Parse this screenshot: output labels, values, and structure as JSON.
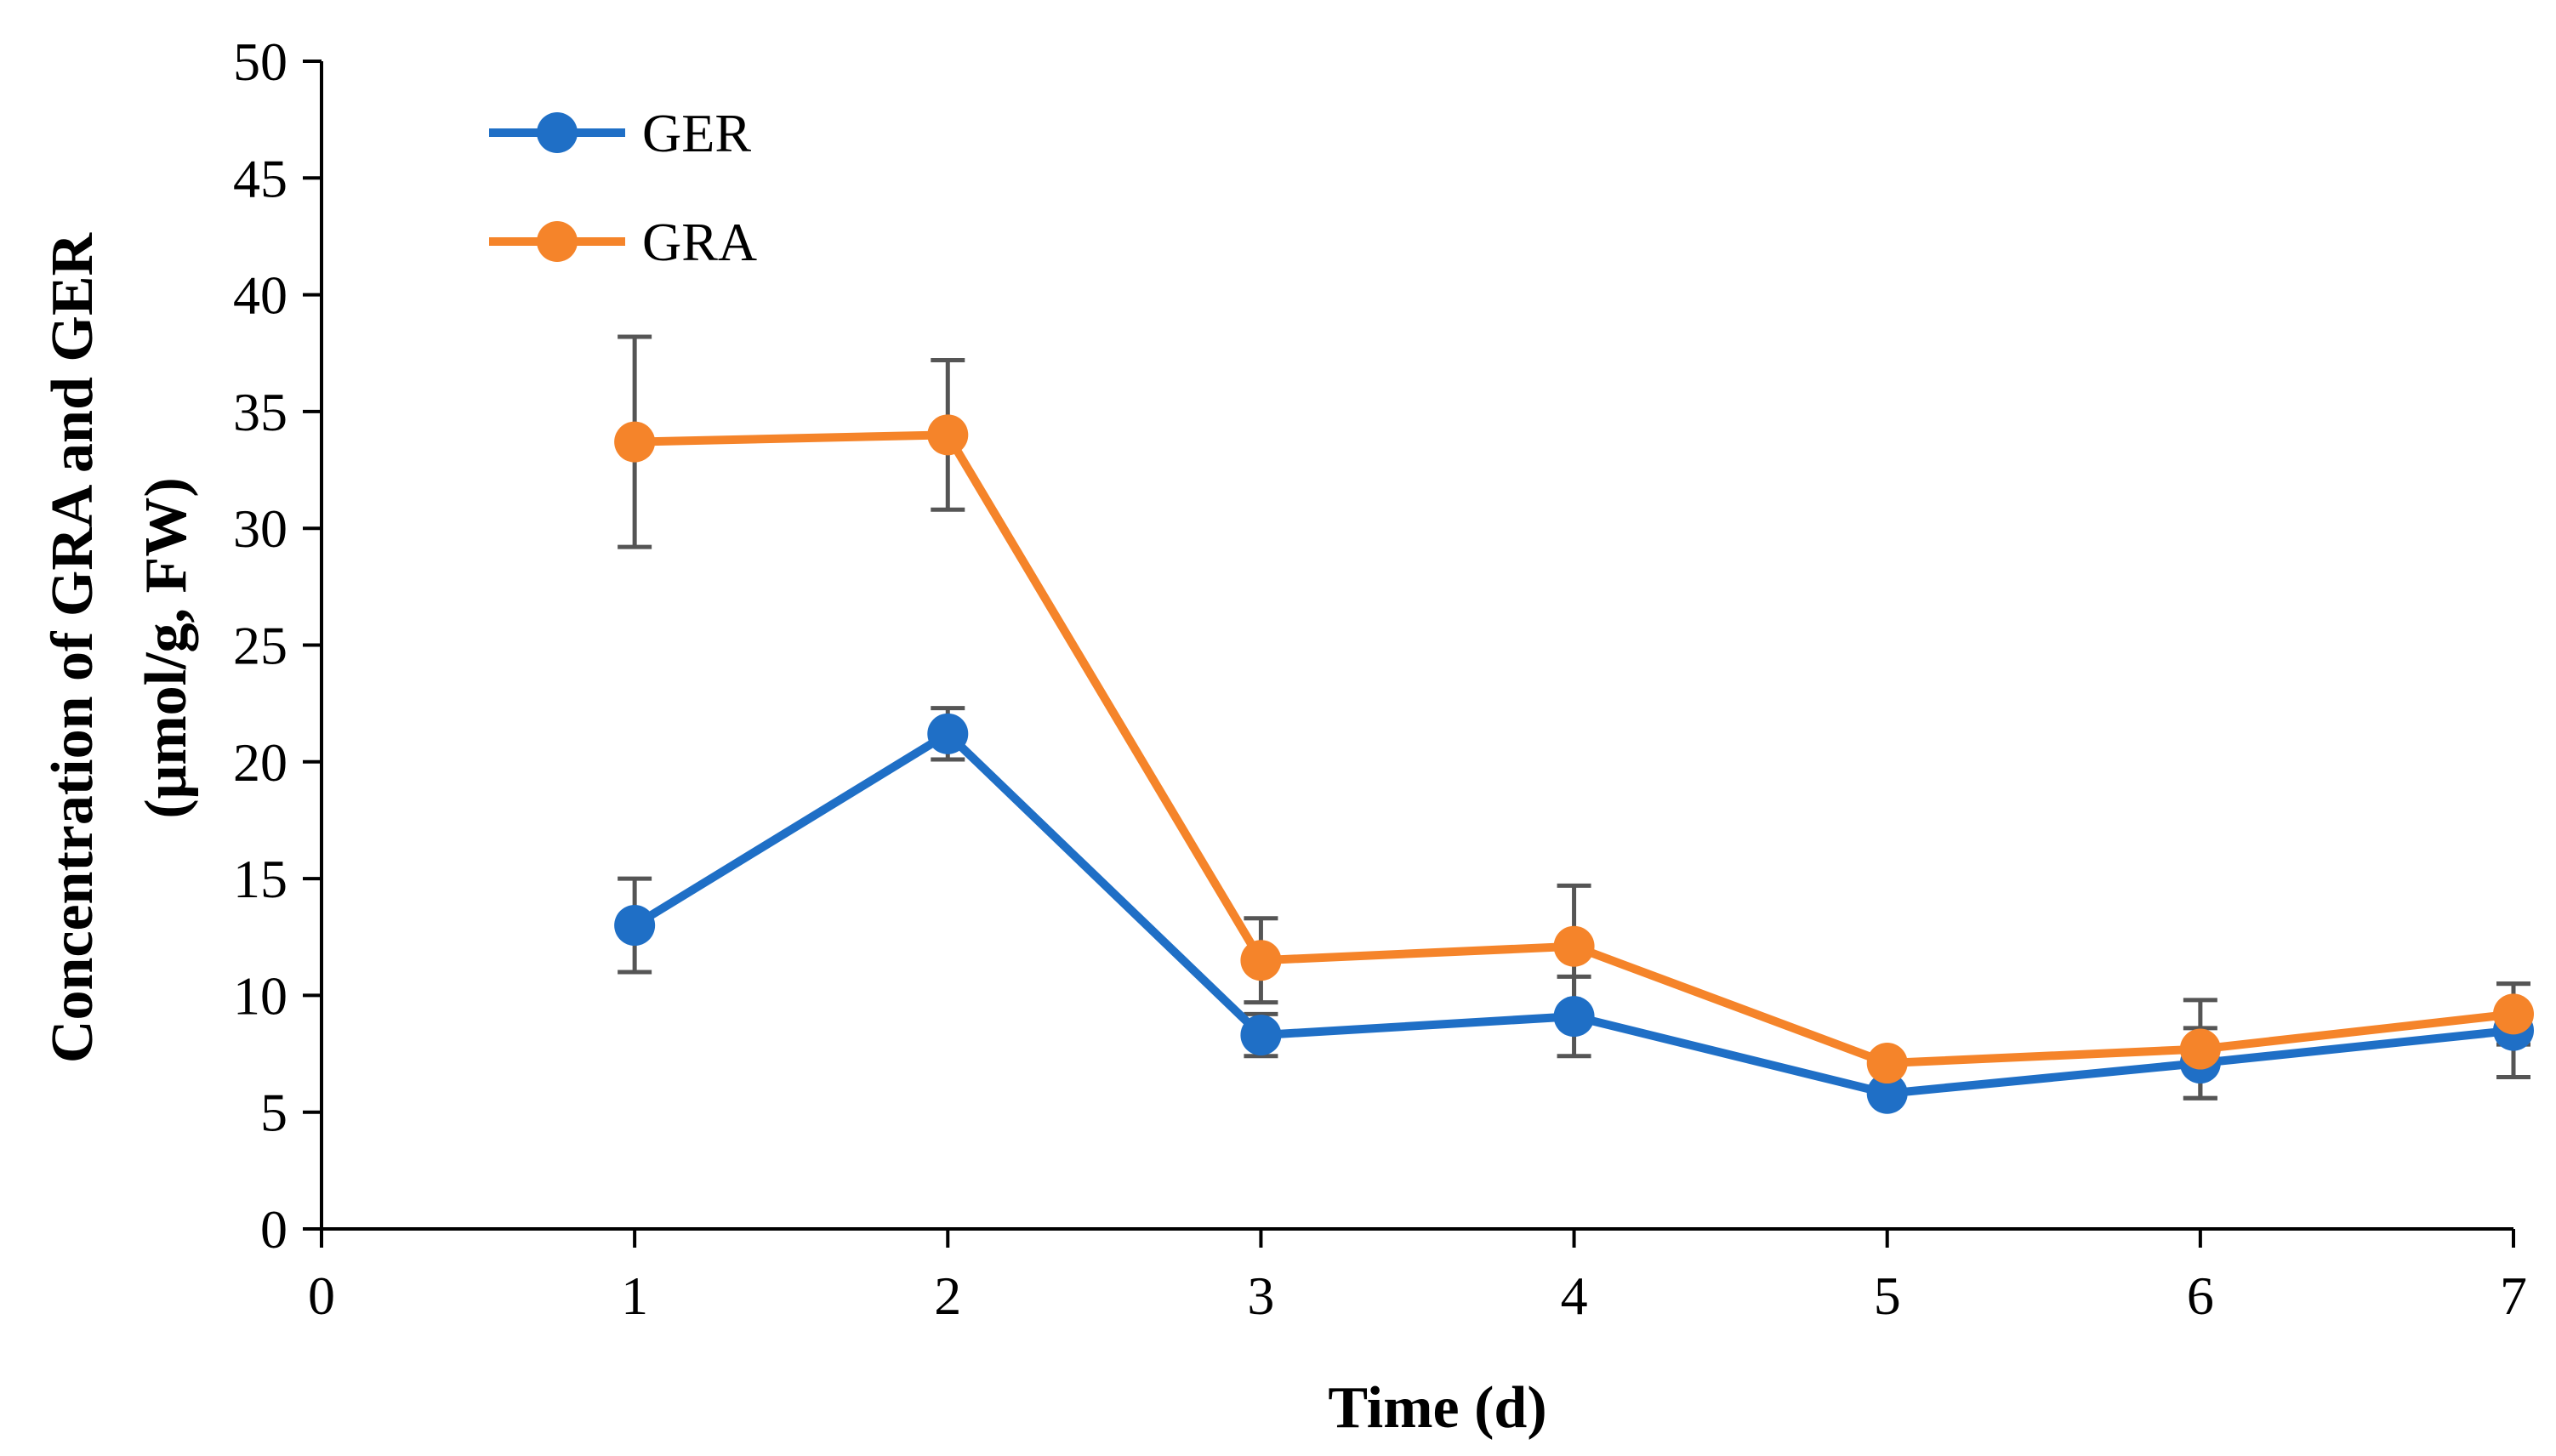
{
  "chart_data": {
    "type": "line",
    "title": "",
    "xlabel": "Time (d)",
    "ylabel_line1": "Concentration of GRA and GER",
    "ylabel_line2": "(μmol/g, FW)",
    "xlim": [
      0,
      7
    ],
    "ylim": [
      0,
      50
    ],
    "x_ticks": [
      0,
      1,
      2,
      3,
      4,
      5,
      6,
      7
    ],
    "y_ticks": [
      0,
      5,
      10,
      15,
      20,
      25,
      30,
      35,
      40,
      45,
      50
    ],
    "grid": false,
    "legend_position": "top-left",
    "x": [
      1,
      2,
      3,
      4,
      5,
      6,
      7
    ],
    "series": [
      {
        "name": "GER",
        "color": "#1F6FC6",
        "values": [
          13.0,
          21.2,
          8.3,
          9.1,
          5.8,
          7.1,
          8.5
        ],
        "errors": [
          2.0,
          1.1,
          0.9,
          1.7,
          0.3,
          1.5,
          2.0
        ]
      },
      {
        "name": "GRA",
        "color": "#F5842A",
        "values": [
          33.7,
          34.0,
          11.5,
          12.1,
          7.1,
          7.7,
          9.2
        ],
        "errors": [
          4.5,
          3.2,
          1.8,
          2.6,
          0.3,
          2.1,
          1.3
        ]
      }
    ],
    "error_bar_color": "#555555",
    "axis_color": "#000000"
  }
}
